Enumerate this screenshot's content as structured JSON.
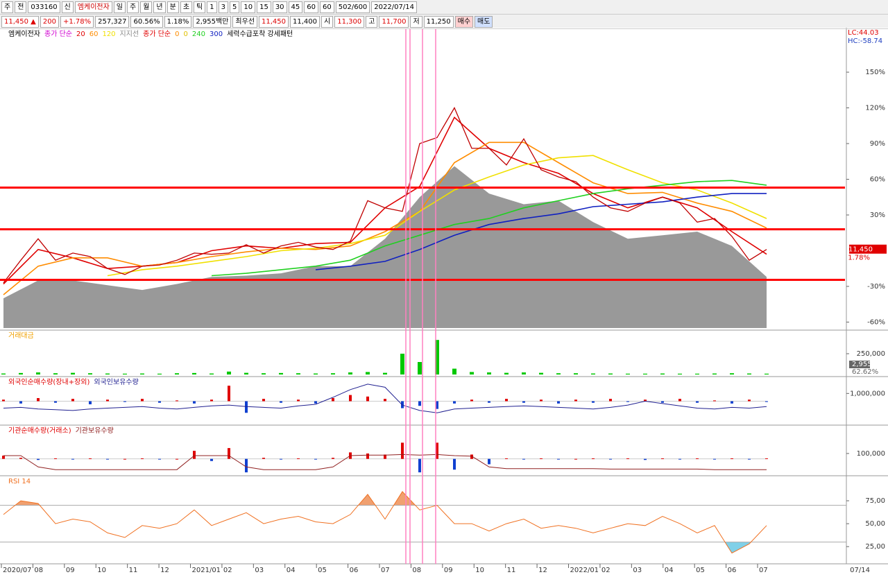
{
  "toolbar": {
    "row1": [
      "주",
      "전",
      "033160",
      "신",
      "엠케이전자",
      "일",
      "주",
      "월",
      "년",
      "분",
      "초",
      "틱",
      "1",
      "3",
      "5",
      "10",
      "15",
      "30",
      "45",
      "60",
      "60",
      "502/600",
      "2022/07/14"
    ],
    "row2": [
      "11,450 ▲",
      "200",
      "+1.78%",
      "257,327",
      "60.56%",
      "1.18%",
      "2,955백만",
      "최우선",
      "11,450",
      "11,400",
      "시",
      "11,300",
      "고",
      "11,700",
      "저",
      "11,250",
      "매수",
      "매도"
    ]
  },
  "x_axis": {
    "categories": [
      "2020/07",
      "08",
      "09",
      "10",
      "11",
      "12",
      "2021/01",
      "02",
      "03",
      "04",
      "05",
      "06",
      "07",
      "08",
      "09",
      "10",
      "11",
      "12",
      "2022/01",
      "02",
      "03",
      "04",
      "05",
      "06",
      "07"
    ],
    "last": "07/14"
  },
  "chart_data": [
    {
      "type": "line",
      "title": "엠케이전자",
      "legend": [
        {
          "text": "종가 단순",
          "color": "#d000d0"
        },
        {
          "text": "지지선",
          "color": "#888888"
        },
        {
          "text": "종가 단순",
          "color": "#e00000"
        },
        {
          "text": "0",
          "color": "#ff8c00"
        },
        {
          "text": "0",
          "color": "#e0c000"
        },
        {
          "text": "세력수급포착 강세패턴",
          "color": "#000000"
        }
      ],
      "lc": "LC:44.03",
      "hc": "HC:-58.74",
      "last_price": {
        "label": "11,450",
        "change": "1.78%"
      },
      "ylim": [
        -65,
        185
      ],
      "yticks": [
        {
          "value": 150,
          "label": "150%"
        },
        {
          "value": 120,
          "label": "120%"
        },
        {
          "value": 90,
          "label": "90%"
        },
        {
          "value": 60,
          "label": "60%"
        },
        {
          "value": 30,
          "label": "30%"
        },
        {
          "value": -30,
          "label": "-30%"
        },
        {
          "value": -60,
          "label": "-60%"
        }
      ],
      "area": {
        "color": "#999999",
        "values": [
          -40,
          -25,
          -25,
          -29,
          -33,
          -28,
          -22,
          -21,
          -19,
          -13,
          -13,
          10,
          45,
          71,
          48,
          39,
          42,
          24,
          10,
          13,
          16,
          4,
          -22
        ]
      },
      "price": {
        "color": "#c00000",
        "values": [
          -27,
          -8,
          10,
          -8,
          -2,
          -5,
          -15,
          -20,
          -13,
          -12,
          -8,
          -2,
          -3,
          -2,
          5,
          -2,
          4,
          7,
          3,
          1,
          8,
          42,
          36,
          33,
          90,
          95,
          120,
          86,
          86,
          72,
          94,
          68,
          62,
          58,
          45,
          36,
          33,
          40,
          45,
          40,
          24,
          27,
          12,
          -8,
          1
        ]
      },
      "series": [
        {
          "name": "20",
          "color": "#e00000",
          "values": [
            -28,
            1,
            -6,
            -15,
            -13,
            -10,
            0,
            4,
            2,
            6,
            7,
            36,
            54,
            112,
            86,
            74,
            65,
            48,
            36,
            45,
            36,
            16,
            -3
          ]
        },
        {
          "name": "60",
          "color": "#ff8c00",
          "values": [
            -37,
            -13,
            -6,
            -6,
            -13,
            -10,
            -5,
            -1,
            2,
            1,
            4,
            16,
            33,
            74,
            91,
            91,
            74,
            57,
            48,
            49,
            40,
            33,
            19
          ]
        },
        {
          "name": "120",
          "color": "#f0e000",
          "values": [
            null,
            null,
            null,
            -21,
            -16,
            -13,
            -9,
            -5,
            0,
            2,
            6,
            13,
            33,
            51,
            62,
            72,
            78,
            80,
            68,
            57,
            51,
            40,
            27
          ]
        },
        {
          "name": "240",
          "color": "#20d020",
          "values": [
            null,
            null,
            null,
            null,
            null,
            null,
            -21,
            -19,
            -16,
            -13,
            -8,
            4,
            13,
            22,
            27,
            36,
            42,
            48,
            52,
            55,
            58,
            59,
            55
          ]
        },
        {
          "name": "300",
          "color": "#1020c0",
          "values": [
            null,
            null,
            null,
            null,
            null,
            null,
            null,
            null,
            null,
            -16,
            -13,
            -9,
            1,
            13,
            22,
            27,
            31,
            37,
            39,
            41,
            45,
            48,
            48
          ]
        }
      ],
      "levels": {
        "color": "#ff0000",
        "values": [
          53,
          18,
          -24.5
        ]
      }
    },
    {
      "type": "bar",
      "title": "거래대금",
      "color": "#00c800",
      "ylim": [
        0,
        500000
      ],
      "yticks": [
        {
          "value": 250000,
          "label": "250,000"
        }
      ],
      "side_labels": [
        "2,955",
        "62.62%"
      ],
      "values": [
        12000,
        18000,
        25000,
        15000,
        20000,
        15000,
        12000,
        10000,
        12000,
        10000,
        15000,
        18000,
        12000,
        35000,
        20000,
        15000,
        18000,
        15000,
        12000,
        15000,
        25000,
        30000,
        20000,
        250000,
        150000,
        415000,
        70000,
        30000,
        25000,
        20000,
        25000,
        20000,
        15000,
        15000,
        12000,
        12000,
        10000,
        10000,
        12000,
        10000,
        10000,
        12000,
        15000,
        12000,
        10000
      ]
    },
    {
      "type": "bar",
      "ylim": [
        -3000000,
        3000000
      ],
      "yticks": [
        {
          "value": 1000000,
          "label": "1,000,000"
        }
      ],
      "series": [
        {
          "name": "외국인순매수량(장내+장외)",
          "type": "bar",
          "color": "#e00000",
          "down_color": "#1040d0",
          "values": [
            200000,
            -300000,
            400000,
            -200000,
            300000,
            -400000,
            200000,
            -100000,
            300000,
            -200000,
            100000,
            -300000,
            200000,
            2000000,
            -1500000,
            300000,
            -200000,
            200000,
            -300000,
            400000,
            800000,
            600000,
            300000,
            -900000,
            -600000,
            -1000000,
            -300000,
            200000,
            -200000,
            300000,
            -200000,
            200000,
            -300000,
            200000,
            -200000,
            300000,
            -100000,
            200000,
            -200000,
            300000,
            -200000,
            100000,
            -300000,
            200000,
            -100000
          ]
        },
        {
          "name": "외국인보유수량",
          "type": "line",
          "color": "#202090",
          "values": [
            -900000,
            -800000,
            -1000000,
            -1100000,
            -1200000,
            -1000000,
            -900000,
            -800000,
            -700000,
            -900000,
            -1000000,
            -800000,
            -600000,
            -500000,
            -700000,
            -800000,
            -900000,
            -600000,
            -400000,
            500000,
            1500000,
            2200000,
            1800000,
            -500000,
            -1200000,
            -1500000,
            -1000000,
            -900000,
            -800000,
            -700000,
            -600000,
            -700000,
            -800000,
            -900000,
            -1000000,
            -800000,
            -500000,
            0,
            -300000,
            -600000,
            -900000,
            -1000000,
            -800000,
            -900000,
            -700000
          ]
        }
      ]
    },
    {
      "type": "bar",
      "ylim": [
        -300000,
        600000
      ],
      "yticks": [
        {
          "value": 100000,
          "label": "100,000"
        }
      ],
      "series": [
        {
          "name": "기관순매수량(거래소)",
          "type": "bar",
          "color": "#e00000",
          "down_color": "#1040d0",
          "values": [
            60000,
            20000,
            -20000,
            10000,
            -10000,
            10000,
            -10000,
            0,
            10000,
            -10000,
            0,
            150000,
            -40000,
            200000,
            -250000,
            20000,
            -10000,
            10000,
            -10000,
            20000,
            120000,
            100000,
            80000,
            300000,
            -250000,
            300000,
            -200000,
            80000,
            -100000,
            10000,
            -10000,
            10000,
            -10000,
            0,
            10000,
            -10000,
            10000,
            -20000,
            10000,
            -10000,
            10000,
            -10000,
            10000,
            -10000,
            10000
          ]
        },
        {
          "name": "기관보유수량",
          "type": "line",
          "color": "#902020",
          "values": [
            60000,
            60000,
            -150000,
            -200000,
            -200000,
            -200000,
            -200000,
            -200000,
            -200000,
            -200000,
            -200000,
            60000,
            60000,
            60000,
            -150000,
            -200000,
            -200000,
            -200000,
            -200000,
            -150000,
            60000,
            70000,
            70000,
            80000,
            70000,
            80000,
            60000,
            50000,
            -150000,
            -180000,
            -180000,
            -180000,
            -180000,
            -180000,
            -180000,
            -190000,
            -190000,
            -190000,
            -190000,
            -190000,
            -190000,
            -200000,
            -200000,
            -200000,
            -200000
          ]
        }
      ]
    },
    {
      "type": "rsi",
      "title": "RSI 14",
      "color": "#f07020",
      "ylim": [
        7,
        100
      ],
      "yticks": [
        {
          "value": 75,
          "label": "75,00"
        },
        {
          "value": 50,
          "label": "50,00"
        },
        {
          "value": 25,
          "label": "25,00"
        }
      ],
      "guides": [
        70,
        30
      ],
      "values": [
        60,
        75,
        72,
        50,
        55,
        52,
        40,
        35,
        48,
        45,
        50,
        65,
        48,
        55,
        62,
        50,
        55,
        58,
        52,
        50,
        60,
        82,
        55,
        85,
        65,
        70,
        50,
        50,
        42,
        50,
        55,
        45,
        48,
        45,
        40,
        45,
        50,
        48,
        58,
        50,
        40,
        48,
        18,
        28,
        48
      ]
    }
  ]
}
